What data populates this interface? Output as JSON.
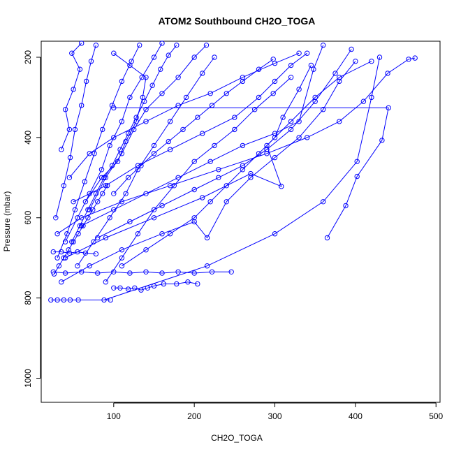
{
  "chart_data": {
    "type": "scatter",
    "title": "ATOM2 Southbound CH2O_TOGA",
    "xlabel": "CH2O_TOGA",
    "ylabel": "Pressure (mbar)",
    "xlim": [
      10,
      505
    ],
    "ylim": [
      1060,
      160
    ],
    "y_reversed": true,
    "x_ticks": [
      100,
      200,
      300,
      400,
      500
    ],
    "y_ticks": [
      200,
      400,
      600,
      800,
      1000
    ],
    "color": "#0000ff",
    "marker": "open-circle",
    "connected": true,
    "series": [
      {
        "values": [
          {
            "x": 365,
            "y": 650
          },
          {
            "x": 388,
            "y": 570
          },
          {
            "x": 402,
            "y": 497
          },
          {
            "x": 433,
            "y": 407
          },
          {
            "x": 441,
            "y": 326
          },
          {
            "x": 100,
            "y": 326
          }
        ]
      },
      {
        "values": [
          {
            "x": 88,
            "y": 805
          },
          {
            "x": 216,
            "y": 720
          },
          {
            "x": 300,
            "y": 640
          },
          {
            "x": 360,
            "y": 560
          },
          {
            "x": 402,
            "y": 460
          },
          {
            "x": 420,
            "y": 300
          },
          {
            "x": 430,
            "y": 200
          }
        ]
      },
      {
        "values": [
          {
            "x": 22,
            "y": 805
          },
          {
            "x": 30,
            "y": 805
          },
          {
            "x": 38,
            "y": 805
          },
          {
            "x": 46,
            "y": 805
          },
          {
            "x": 56,
            "y": 805
          },
          {
            "x": 96,
            "y": 805
          }
        ]
      },
      {
        "values": [
          {
            "x": 100,
            "y": 775
          },
          {
            "x": 108,
            "y": 775
          },
          {
            "x": 118,
            "y": 778
          },
          {
            "x": 126,
            "y": 775
          },
          {
            "x": 134,
            "y": 780
          },
          {
            "x": 142,
            "y": 775
          },
          {
            "x": 150,
            "y": 770
          },
          {
            "x": 162,
            "y": 765
          },
          {
            "x": 178,
            "y": 765
          },
          {
            "x": 192,
            "y": 760
          },
          {
            "x": 204,
            "y": 765
          }
        ]
      },
      {
        "values": [
          {
            "x": 25,
            "y": 735
          },
          {
            "x": 40,
            "y": 738
          },
          {
            "x": 60,
            "y": 735
          },
          {
            "x": 80,
            "y": 738
          },
          {
            "x": 100,
            "y": 735
          },
          {
            "x": 120,
            "y": 738
          },
          {
            "x": 140,
            "y": 735
          },
          {
            "x": 160,
            "y": 738
          },
          {
            "x": 180,
            "y": 735
          },
          {
            "x": 200,
            "y": 738
          },
          {
            "x": 222,
            "y": 735
          },
          {
            "x": 246,
            "y": 735
          }
        ]
      },
      {
        "values": [
          {
            "x": 25,
            "y": 685
          },
          {
            "x": 35,
            "y": 685
          },
          {
            "x": 45,
            "y": 688
          },
          {
            "x": 55,
            "y": 685
          },
          {
            "x": 65,
            "y": 688
          },
          {
            "x": 78,
            "y": 690
          }
        ]
      },
      {
        "values": [
          {
            "x": 30,
            "y": 640
          },
          {
            "x": 60,
            "y": 600
          },
          {
            "x": 110,
            "y": 560
          },
          {
            "x": 170,
            "y": 520
          },
          {
            "x": 230,
            "y": 480
          },
          {
            "x": 290,
            "y": 440
          },
          {
            "x": 340,
            "y": 400
          },
          {
            "x": 380,
            "y": 360
          },
          {
            "x": 410,
            "y": 310
          },
          {
            "x": 440,
            "y": 240
          },
          {
            "x": 466,
            "y": 205
          },
          {
            "x": 474,
            "y": 202
          }
        ]
      },
      {
        "values": [
          {
            "x": 40,
            "y": 700
          },
          {
            "x": 90,
            "y": 650
          },
          {
            "x": 150,
            "y": 600
          },
          {
            "x": 210,
            "y": 550
          },
          {
            "x": 270,
            "y": 490
          },
          {
            "x": 308,
            "y": 522
          },
          {
            "x": 290,
            "y": 420
          },
          {
            "x": 320,
            "y": 360
          },
          {
            "x": 350,
            "y": 300
          },
          {
            "x": 380,
            "y": 250
          },
          {
            "x": 420,
            "y": 210
          }
        ]
      },
      {
        "values": [
          {
            "x": 35,
            "y": 760
          },
          {
            "x": 70,
            "y": 720
          },
          {
            "x": 110,
            "y": 680
          },
          {
            "x": 160,
            "y": 640
          },
          {
            "x": 200,
            "y": 610
          },
          {
            "x": 216,
            "y": 650
          },
          {
            "x": 240,
            "y": 560
          },
          {
            "x": 270,
            "y": 500
          },
          {
            "x": 300,
            "y": 450
          },
          {
            "x": 330,
            "y": 400
          },
          {
            "x": 360,
            "y": 330
          },
          {
            "x": 380,
            "y": 260
          },
          {
            "x": 400,
            "y": 210
          }
        ]
      },
      {
        "values": [
          {
            "x": 50,
            "y": 560
          },
          {
            "x": 90,
            "y": 520
          },
          {
            "x": 130,
            "y": 470
          },
          {
            "x": 170,
            "y": 430
          },
          {
            "x": 210,
            "y": 390
          },
          {
            "x": 250,
            "y": 350
          },
          {
            "x": 280,
            "y": 300
          },
          {
            "x": 300,
            "y": 260
          },
          {
            "x": 320,
            "y": 220
          },
          {
            "x": 340,
            "y": 190
          }
        ]
      },
      {
        "values": [
          {
            "x": 45,
            "y": 500
          },
          {
            "x": 70,
            "y": 440
          },
          {
            "x": 100,
            "y": 400
          },
          {
            "x": 140,
            "y": 360
          },
          {
            "x": 180,
            "y": 320
          },
          {
            "x": 220,
            "y": 290
          },
          {
            "x": 260,
            "y": 250
          },
          {
            "x": 300,
            "y": 215
          },
          {
            "x": 330,
            "y": 190
          }
        ]
      },
      {
        "values": [
          {
            "x": 60,
            "y": 620
          },
          {
            "x": 100,
            "y": 580
          },
          {
            "x": 140,
            "y": 540
          },
          {
            "x": 180,
            "y": 500
          },
          {
            "x": 220,
            "y": 460
          },
          {
            "x": 260,
            "y": 420
          },
          {
            "x": 300,
            "y": 390
          },
          {
            "x": 330,
            "y": 360
          },
          {
            "x": 348,
            "y": 230
          },
          {
            "x": 360,
            "y": 170
          }
        ]
      },
      {
        "values": [
          {
            "x": 28,
            "y": 600
          },
          {
            "x": 38,
            "y": 520
          },
          {
            "x": 46,
            "y": 450
          },
          {
            "x": 52,
            "y": 380
          },
          {
            "x": 60,
            "y": 320
          },
          {
            "x": 66,
            "y": 260
          },
          {
            "x": 72,
            "y": 210
          },
          {
            "x": 78,
            "y": 170
          }
        ]
      },
      {
        "values": [
          {
            "x": 40,
            "y": 660
          },
          {
            "x": 55,
            "y": 600
          },
          {
            "x": 70,
            "y": 540
          },
          {
            "x": 85,
            "y": 480
          },
          {
            "x": 95,
            "y": 420
          },
          {
            "x": 110,
            "y": 360
          },
          {
            "x": 120,
            "y": 300
          },
          {
            "x": 135,
            "y": 250
          },
          {
            "x": 150,
            "y": 200
          },
          {
            "x": 160,
            "y": 165
          }
        ]
      },
      {
        "values": [
          {
            "x": 55,
            "y": 720
          },
          {
            "x": 75,
            "y": 660
          },
          {
            "x": 95,
            "y": 600
          },
          {
            "x": 115,
            "y": 540
          },
          {
            "x": 130,
            "y": 480
          },
          {
            "x": 150,
            "y": 420
          },
          {
            "x": 170,
            "y": 360
          },
          {
            "x": 190,
            "y": 300
          },
          {
            "x": 210,
            "y": 240
          },
          {
            "x": 225,
            "y": 200
          }
        ]
      },
      {
        "values": [
          {
            "x": 70,
            "y": 580
          },
          {
            "x": 90,
            "y": 500
          },
          {
            "x": 110,
            "y": 440
          },
          {
            "x": 125,
            "y": 380
          },
          {
            "x": 140,
            "y": 330
          },
          {
            "x": 160,
            "y": 290
          },
          {
            "x": 180,
            "y": 250
          },
          {
            "x": 200,
            "y": 200
          },
          {
            "x": 215,
            "y": 170
          }
        ]
      },
      {
        "values": [
          {
            "x": 30,
            "y": 700
          },
          {
            "x": 42,
            "y": 640
          },
          {
            "x": 52,
            "y": 580
          },
          {
            "x": 64,
            "y": 510
          },
          {
            "x": 76,
            "y": 440
          },
          {
            "x": 86,
            "y": 380
          },
          {
            "x": 98,
            "y": 320
          },
          {
            "x": 110,
            "y": 260
          },
          {
            "x": 122,
            "y": 210
          },
          {
            "x": 132,
            "y": 170
          }
        ]
      },
      {
        "values": [
          {
            "x": 80,
            "y": 650
          },
          {
            "x": 120,
            "y": 610
          },
          {
            "x": 160,
            "y": 570
          },
          {
            "x": 200,
            "y": 530
          },
          {
            "x": 230,
            "y": 500
          },
          {
            "x": 260,
            "y": 470
          },
          {
            "x": 290,
            "y": 430
          },
          {
            "x": 320,
            "y": 380
          },
          {
            "x": 350,
            "y": 310
          },
          {
            "x": 375,
            "y": 240
          },
          {
            "x": 395,
            "y": 180
          }
        ]
      },
      {
        "values": [
          {
            "x": 65,
            "y": 560
          },
          {
            "x": 85,
            "y": 500
          },
          {
            "x": 105,
            "y": 460
          },
          {
            "x": 115,
            "y": 410
          },
          {
            "x": 128,
            "y": 360
          },
          {
            "x": 136,
            "y": 300
          },
          {
            "x": 140,
            "y": 250
          },
          {
            "x": 120,
            "y": 220
          },
          {
            "x": 100,
            "y": 190
          }
        ]
      },
      {
        "values": [
          {
            "x": 35,
            "y": 430
          },
          {
            "x": 45,
            "y": 380
          },
          {
            "x": 40,
            "y": 330
          },
          {
            "x": 50,
            "y": 280
          },
          {
            "x": 58,
            "y": 230
          },
          {
            "x": 48,
            "y": 190
          },
          {
            "x": 60,
            "y": 165
          }
        ]
      },
      {
        "values": [
          {
            "x": 90,
            "y": 760
          },
          {
            "x": 110,
            "y": 700
          },
          {
            "x": 130,
            "y": 640
          },
          {
            "x": 150,
            "y": 580
          },
          {
            "x": 175,
            "y": 520
          },
          {
            "x": 200,
            "y": 460
          },
          {
            "x": 225,
            "y": 420
          },
          {
            "x": 250,
            "y": 380
          },
          {
            "x": 275,
            "y": 330
          },
          {
            "x": 298,
            "y": 290
          },
          {
            "x": 320,
            "y": 250
          }
        ]
      },
      {
        "values": [
          {
            "x": 110,
            "y": 720
          },
          {
            "x": 140,
            "y": 680
          },
          {
            "x": 170,
            "y": 640
          },
          {
            "x": 200,
            "y": 600
          },
          {
            "x": 220,
            "y": 560
          },
          {
            "x": 240,
            "y": 520
          },
          {
            "x": 260,
            "y": 480
          },
          {
            "x": 280,
            "y": 440
          },
          {
            "x": 300,
            "y": 400
          },
          {
            "x": 310,
            "y": 350
          },
          {
            "x": 330,
            "y": 280
          },
          {
            "x": 345,
            "y": 220
          }
        ]
      },
      {
        "values": [
          {
            "x": 48,
            "y": 660
          },
          {
            "x": 58,
            "y": 620
          },
          {
            "x": 68,
            "y": 580
          },
          {
            "x": 78,
            "y": 540
          },
          {
            "x": 88,
            "y": 500
          },
          {
            "x": 98,
            "y": 470
          },
          {
            "x": 108,
            "y": 430
          },
          {
            "x": 118,
            "y": 390
          },
          {
            "x": 128,
            "y": 350
          },
          {
            "x": 138,
            "y": 310
          },
          {
            "x": 148,
            "y": 270
          },
          {
            "x": 158,
            "y": 230
          },
          {
            "x": 168,
            "y": 195
          },
          {
            "x": 178,
            "y": 170
          }
        ]
      },
      {
        "values": [
          {
            "x": 26,
            "y": 740
          },
          {
            "x": 32,
            "y": 720
          },
          {
            "x": 38,
            "y": 700
          },
          {
            "x": 44,
            "y": 680
          },
          {
            "x": 50,
            "y": 660
          },
          {
            "x": 56,
            "y": 640
          },
          {
            "x": 62,
            "y": 620
          },
          {
            "x": 68,
            "y": 600
          },
          {
            "x": 74,
            "y": 580
          },
          {
            "x": 80,
            "y": 560
          },
          {
            "x": 86,
            "y": 540
          },
          {
            "x": 92,
            "y": 520
          }
        ]
      },
      {
        "values": [
          {
            "x": 100,
            "y": 540
          },
          {
            "x": 118,
            "y": 500
          },
          {
            "x": 134,
            "y": 470
          },
          {
            "x": 150,
            "y": 440
          },
          {
            "x": 168,
            "y": 410
          },
          {
            "x": 186,
            "y": 380
          },
          {
            "x": 204,
            "y": 350
          },
          {
            "x": 222,
            "y": 320
          },
          {
            "x": 240,
            "y": 290
          },
          {
            "x": 260,
            "y": 260
          },
          {
            "x": 280,
            "y": 230
          },
          {
            "x": 298,
            "y": 205
          }
        ]
      }
    ]
  }
}
